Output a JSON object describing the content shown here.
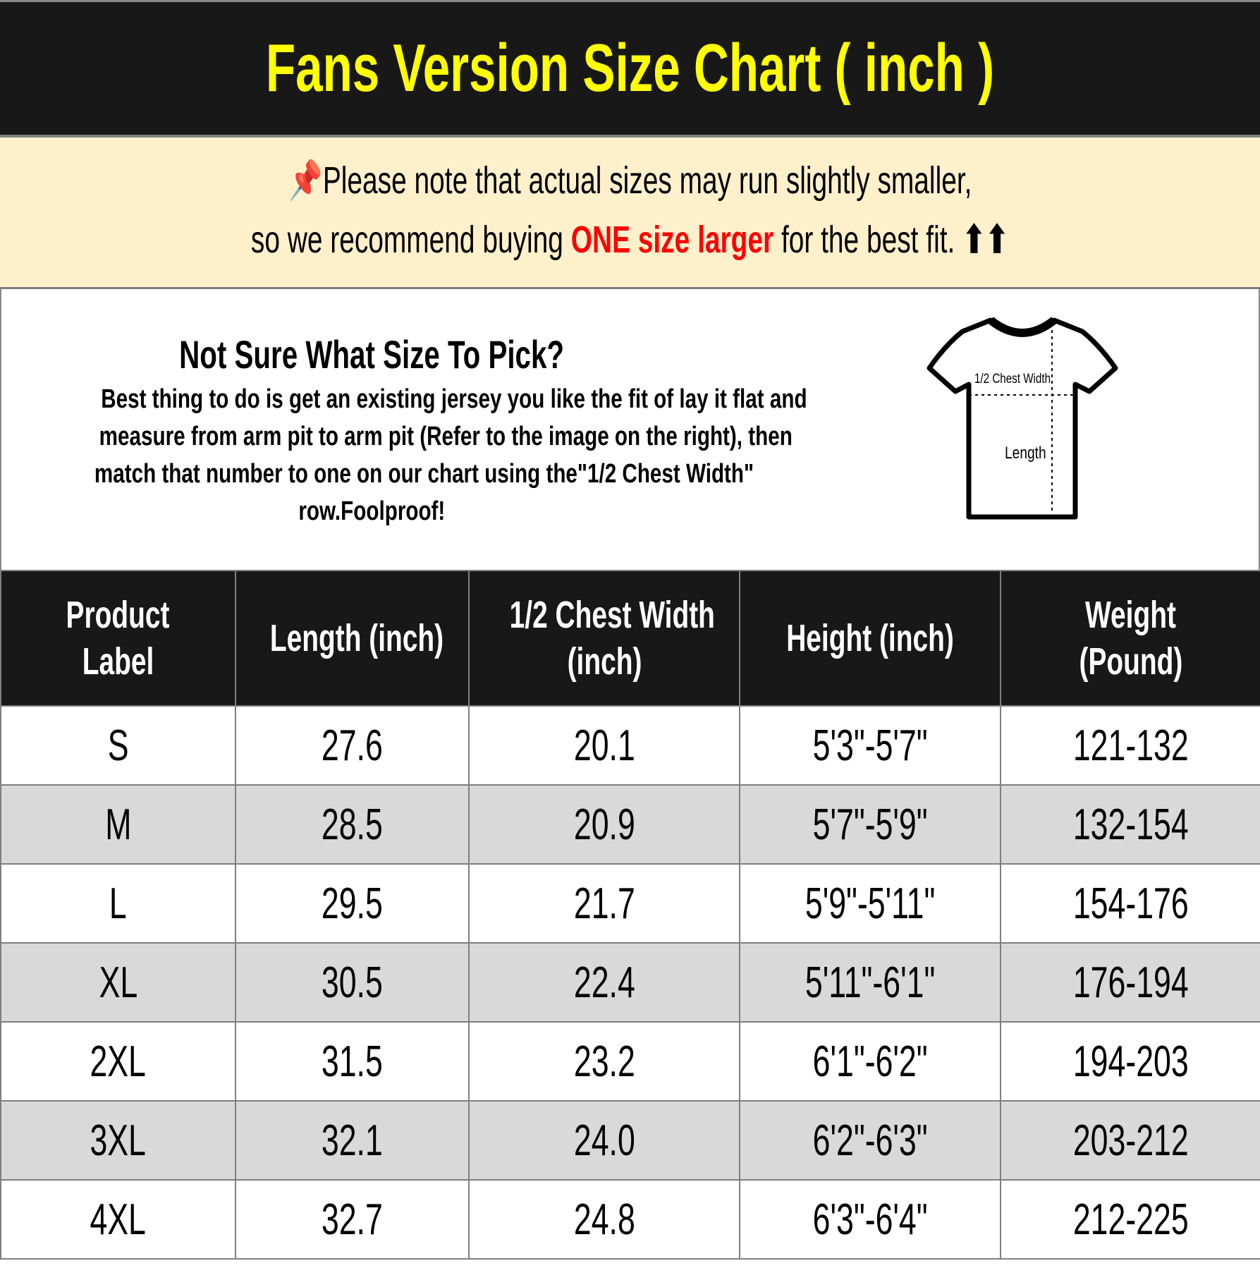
{
  "header": {
    "title": "Fans Version Size Chart ( inch )",
    "title_color": "#ffff00"
  },
  "note": {
    "icon": "pushpin-icon",
    "line1": "Please note that actual sizes may run slightly smaller,",
    "line2_prefix": "so we recommend buying ",
    "line2_highlight": "ONE size larger",
    "line2_suffix": " for the best fit. ",
    "arrows": "⬆⬆",
    "highlight_color": "#ff0000",
    "background": "#fff0cc"
  },
  "info": {
    "question": "Not Sure What Size To Pick?",
    "lines": [
      "Best thing to do is get an existing jersey you like the fit of lay it flat and",
      "measure from arm pit to arm pit (Refer to the image on the right), then",
      "match that number to one on our chart using the\"1/2 Chest Width\"",
      "row.Foolproof!"
    ],
    "diagram": {
      "chest_label": "1/2 Chest Width",
      "length_label": "Length"
    }
  },
  "table": {
    "headers": [
      [
        "Product",
        "Label"
      ],
      [
        "Length (inch)"
      ],
      [
        "1/2 Chest Width",
        "(inch)"
      ],
      [
        "Height (inch)"
      ],
      [
        "Weight",
        "(Pound)"
      ]
    ],
    "rows": [
      [
        "S",
        "27.6",
        "20.1",
        "5'3\"-5'7\"",
        "121-132"
      ],
      [
        "M",
        "28.5",
        "20.9",
        "5'7\"-5'9\"",
        "132-154"
      ],
      [
        "L",
        "29.5",
        "21.7",
        "5'9\"-5'11\"",
        "154-176"
      ],
      [
        "XL",
        "30.5",
        "22.4",
        "5'11\"-6'1\"",
        "176-194"
      ],
      [
        "2XL",
        "31.5",
        "23.2",
        "6'1\"-6'2\"",
        "194-203"
      ],
      [
        "3XL",
        "32.1",
        "24.0",
        "6'2\"-6'3\"",
        "203-212"
      ],
      [
        "4XL",
        "32.7",
        "24.8",
        "6'3\"-6'4\"",
        "212-225"
      ]
    ]
  }
}
